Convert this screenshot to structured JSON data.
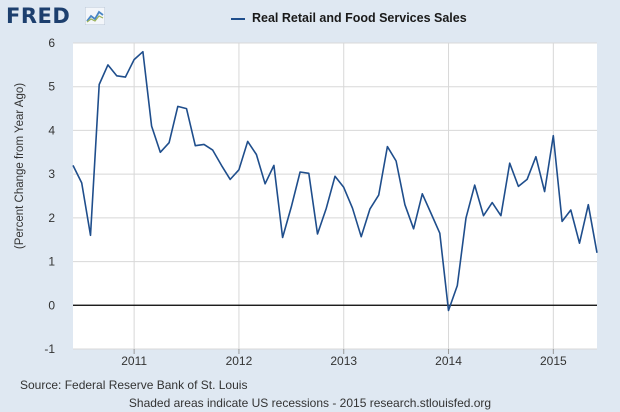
{
  "header": {
    "logo_text": "FRED",
    "logo_icon": "chart-line-icon"
  },
  "colors": {
    "background": "#dfe8f2",
    "plot_background": "#ffffff",
    "series": "#1f4e8c",
    "grid": "#d8d8d8",
    "zero_line": "#000000",
    "logo": "#1d3f6e"
  },
  "footer": {
    "source": "Source: Federal Reserve Bank of St. Louis",
    "note": "Shaded areas indicate US recessions - 2015 research.stlouisfed.org"
  },
  "chart_data": {
    "type": "line",
    "title": "",
    "xlabel": "",
    "ylabel": "(Percent Change from Year Ago)",
    "legend_position": "top-center",
    "grid": true,
    "ylim": [
      -1,
      6
    ],
    "y_ticks": [
      -1,
      0,
      1,
      2,
      3,
      4,
      5,
      6
    ],
    "x_ticks": [
      "2011",
      "2012",
      "2013",
      "2014",
      "2015"
    ],
    "x_start": "2010-06",
    "x_end": "2015-06",
    "series": [
      {
        "name": "Real Retail and Food Services Sales",
        "x": [
          "2010-06",
          "2010-07",
          "2010-08",
          "2010-09",
          "2010-10",
          "2010-11",
          "2010-12",
          "2011-01",
          "2011-02",
          "2011-03",
          "2011-04",
          "2011-05",
          "2011-06",
          "2011-07",
          "2011-08",
          "2011-09",
          "2011-10",
          "2011-11",
          "2011-12",
          "2012-01",
          "2012-02",
          "2012-03",
          "2012-04",
          "2012-05",
          "2012-06",
          "2012-07",
          "2012-08",
          "2012-09",
          "2012-10",
          "2012-11",
          "2012-12",
          "2013-01",
          "2013-02",
          "2013-03",
          "2013-04",
          "2013-05",
          "2013-06",
          "2013-07",
          "2013-08",
          "2013-09",
          "2013-10",
          "2013-11",
          "2013-12",
          "2014-01",
          "2014-02",
          "2014-03",
          "2014-04",
          "2014-05",
          "2014-06",
          "2014-07",
          "2014-08",
          "2014-09",
          "2014-10",
          "2014-11",
          "2014-12",
          "2015-01",
          "2015-02",
          "2015-03",
          "2015-04",
          "2015-05",
          "2015-06"
        ],
        "values": [
          3.2,
          2.8,
          1.6,
          5.05,
          5.5,
          5.25,
          5.22,
          5.62,
          5.8,
          4.1,
          3.5,
          3.72,
          4.55,
          4.5,
          3.65,
          3.68,
          3.55,
          3.2,
          2.88,
          3.1,
          3.75,
          3.45,
          2.78,
          3.2,
          1.55,
          2.25,
          3.05,
          3.02,
          1.63,
          2.22,
          2.95,
          2.7,
          2.22,
          1.57,
          2.2,
          2.52,
          3.63,
          3.3,
          2.3,
          1.75,
          2.55,
          2.1,
          1.65,
          -0.12,
          0.45,
          2.0,
          2.75,
          2.05,
          2.35,
          2.05,
          3.25,
          2.72,
          2.88,
          3.4,
          2.6,
          3.88,
          1.92,
          2.18,
          1.42,
          2.3,
          1.2
        ]
      }
    ]
  }
}
